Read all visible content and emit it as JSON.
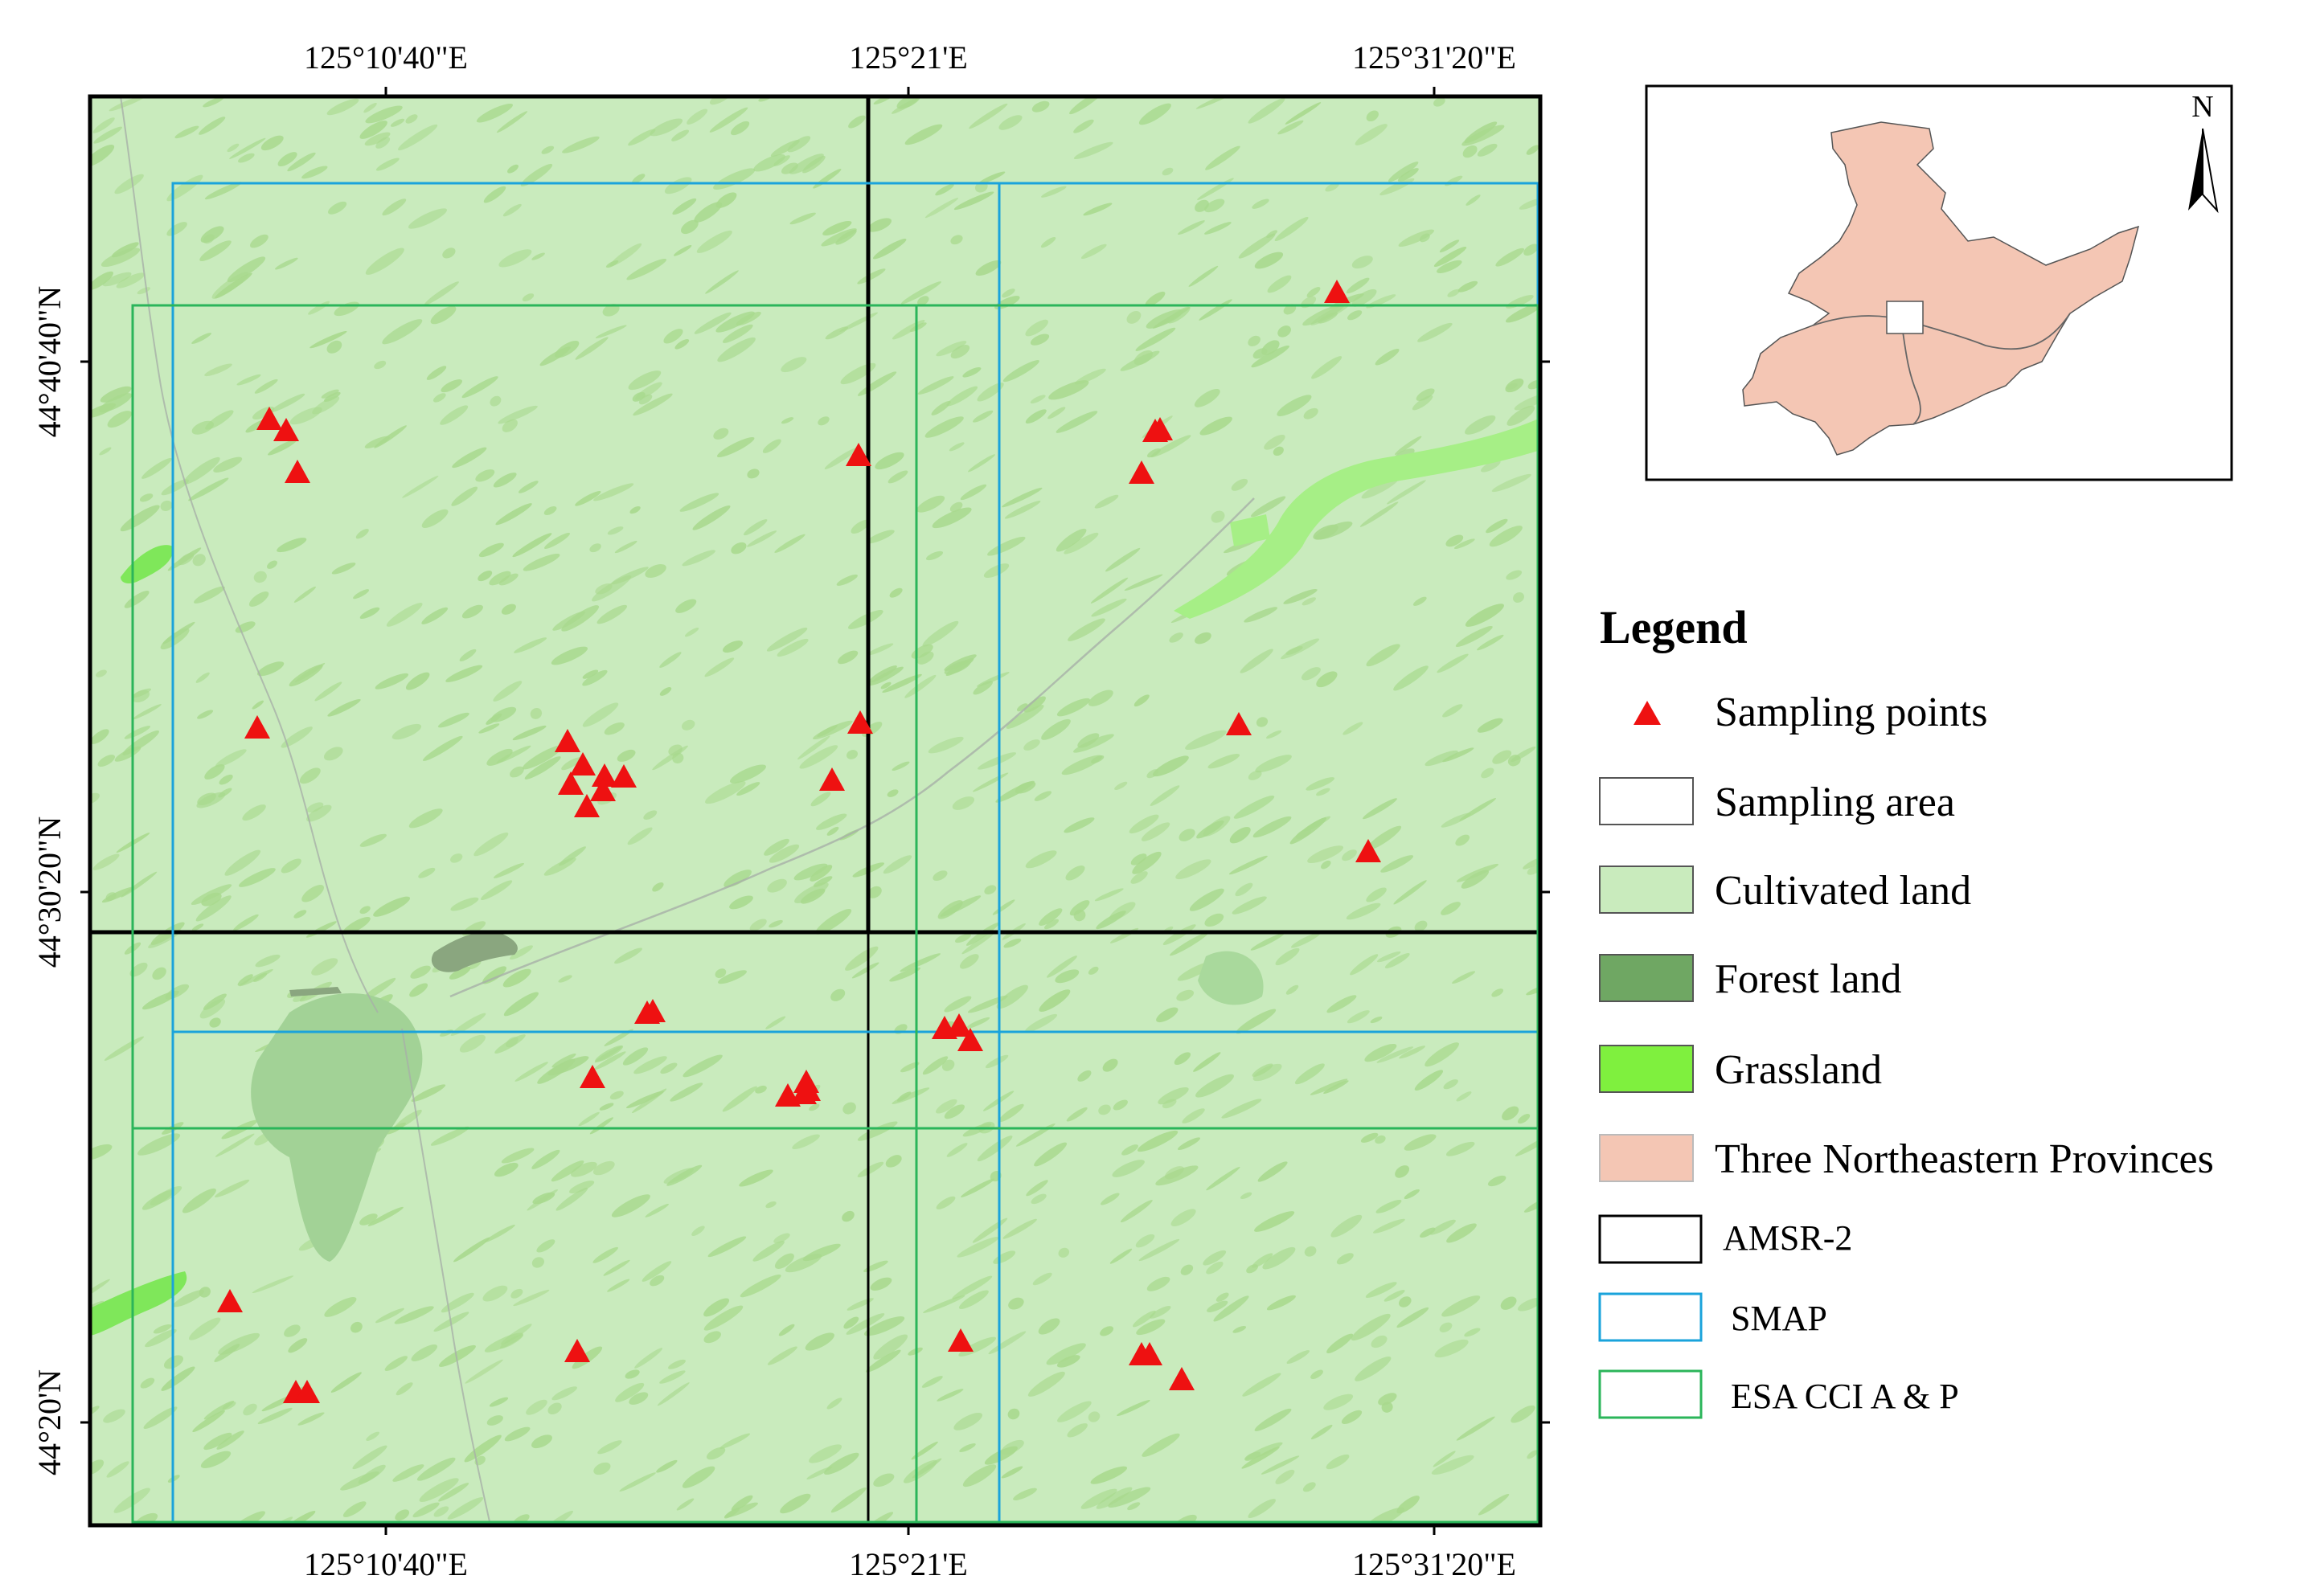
{
  "map": {
    "top_ticks": [
      "125°10'40\"E",
      "125°21'E",
      "125°31'20\"E"
    ],
    "bottom_ticks": [
      "125°10'40\"E",
      "125°21'E",
      "125°31'20\"E"
    ],
    "left_ticks": [
      "44°40'40\"N",
      "44°30'20\"N",
      "44°20'N"
    ],
    "colors": {
      "cultivated": "#c9ebbd",
      "cultivated_patch": "#a8d98d",
      "forest": "#8aa67f",
      "grassland": "#7fe75a",
      "river": "#a8b0a8",
      "amsr2": "#000000",
      "smap": "#1aa3db",
      "esa": "#2bb55a",
      "sample": "#ee1111",
      "provinces": "#f4c6b4"
    }
  },
  "inset": {
    "north_label": "N"
  },
  "legend": {
    "title": "Legend",
    "items": [
      {
        "label": "Sampling points",
        "symbol": "triangle"
      },
      {
        "label": "Sampling area",
        "symbol": "box-white"
      },
      {
        "label": "Cultivated land",
        "symbol": "box-cultivated"
      },
      {
        "label": "Forest land",
        "symbol": "box-forest"
      },
      {
        "label": "Grassland",
        "symbol": "box-grassland"
      },
      {
        "label": "Three Northeastern Provinces",
        "symbol": "box-provinces"
      },
      {
        "label": "AMSR-2",
        "symbol": "outline-black"
      },
      {
        "label": "SMAP",
        "symbol": "outline-blue"
      },
      {
        "label": "ESA CCI A & P",
        "symbol": "outline-green"
      }
    ]
  }
}
